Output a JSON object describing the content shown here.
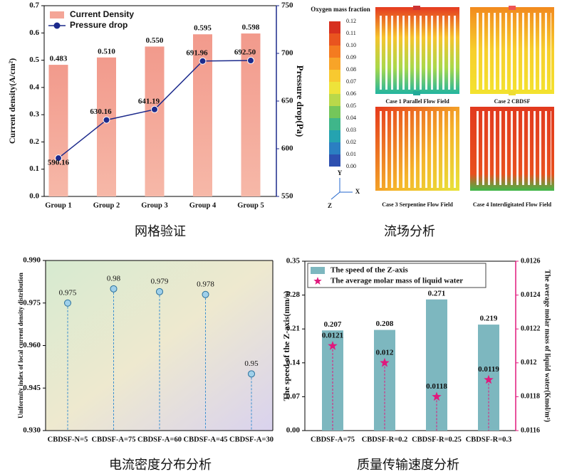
{
  "chart_data": [
    {
      "type": "bar",
      "caption": "网格验证",
      "y_label": "Current density(A/cm²)",
      "y2_label": "Pressure drop(Pa)",
      "categories": [
        "Group 1",
        "Group 2",
        "Group 3",
        "Group 4",
        "Group 5"
      ],
      "series": [
        {
          "name": "Current Density",
          "type": "bar",
          "color": "#f4a597",
          "values": [
            0.483,
            0.51,
            0.55,
            0.595,
            0.598
          ],
          "value_labels": [
            "0.483",
            "0.510",
            "0.550",
            "0.595",
            "0.598"
          ]
        },
        {
          "name": "Pressure drop",
          "type": "line",
          "axis": "y2",
          "color": "#1c2a8c",
          "values": [
            590.16,
            630.16,
            641.19,
            691.96,
            692.5
          ],
          "value_labels": [
            "590.16",
            "630.16",
            "641.19",
            "691.96",
            "692.50"
          ]
        }
      ],
      "ylim": [
        0,
        0.7
      ],
      "yticks": [
        {
          "value": 0,
          "label": "0.0"
        },
        0.1,
        0.2,
        0.3,
        0.4,
        0.5,
        0.6,
        0.7
      ],
      "y2lim": [
        550,
        750
      ],
      "y2ticks": [
        550,
        600,
        650,
        700,
        750
      ]
    },
    {
      "type": "stem",
      "caption": "电流密度分布分析",
      "y_label": "Uniformity index of local current density distribution",
      "categories": [
        "CBDSF-N=5",
        "CBDSF-A=75",
        "CBDSF-A=60",
        "CBDSF-A=45",
        "CBDSF-A=30"
      ],
      "values": [
        0.975,
        0.98,
        0.979,
        0.978,
        0.95
      ],
      "color": "#3a8fd0",
      "ylim": [
        0.93,
        0.99
      ],
      "yticks": [
        {
          "value": 0.93,
          "label": "0.930"
        },
        0.945,
        {
          "value": 0.96,
          "label": "0.960"
        },
        0.975,
        {
          "value": 0.99,
          "label": "0.990"
        }
      ]
    },
    {
      "type": "bar",
      "caption": "质量传输速度分析",
      "y_label": "The speed of the Z-axis(mm/s)",
      "y2_label": "The average molar mass of liquid water(Kmol/m³)",
      "categories": [
        "CBDSF-A=75",
        "CBDSF-R=0.2",
        "CBDSF-R=0.25",
        "CBDSF-R=0.3"
      ],
      "series": [
        {
          "name": "The speed of the Z-axis",
          "type": "bar",
          "color": "#7db7bf",
          "values": [
            0.207,
            0.208,
            0.271,
            0.219
          ]
        },
        {
          "name": "The average molar mass of liquid water",
          "type": "scatter",
          "axis": "y2",
          "color": "#e0197d",
          "values": [
            0.0121,
            0.012,
            0.0118,
            0.0119
          ]
        }
      ],
      "ylim": [
        0,
        0.35
      ],
      "yticks": [
        {
          "value": 0,
          "label": "0.00"
        },
        0.07,
        0.14,
        0.21,
        0.28,
        0.35
      ],
      "y2lim": [
        0.0116,
        0.0126
      ],
      "y2ticks": [
        0.0116,
        0.0118,
        0.012,
        0.0122,
        0.0124,
        0.0126
      ]
    }
  ],
  "flow_field": {
    "caption": "流场分析",
    "colorbar_title": "Oxygen mass fraction",
    "colorbar_ticks": [
      "0.12",
      "0.11",
      "0.10",
      "0.09",
      "0.08",
      "0.07",
      "0.06",
      "0.05",
      "0.04",
      "0.03",
      "0.02",
      "0.01",
      "0.00"
    ],
    "cases": [
      "Case 1 Parallel Flow Field",
      "Case 2 CBDSF",
      "Case 3 Serpentine Flow Field",
      "Case 4 Interdigitated Flow Field"
    ],
    "axis_labels": [
      "Y",
      "X",
      "Z"
    ]
  }
}
